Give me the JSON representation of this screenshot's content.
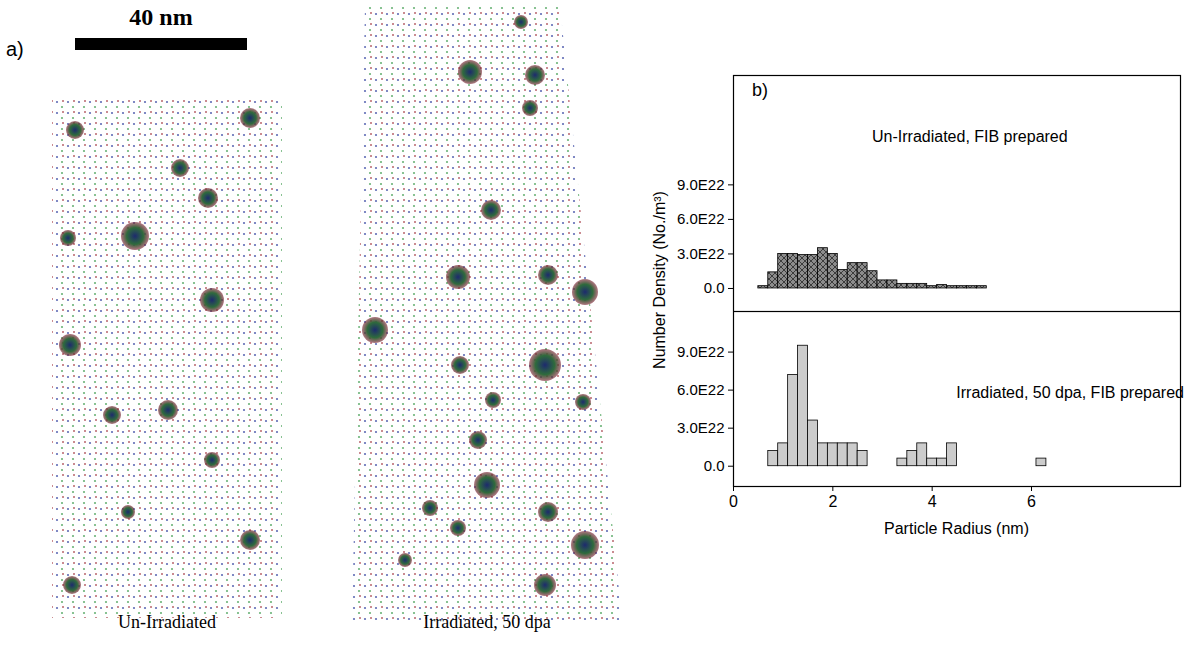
{
  "panel_a": {
    "label": "a)",
    "scale_bar": "40 nm",
    "captions": [
      "Un-Irradiated",
      "Irradiated, 50 dpa"
    ]
  },
  "chart_data": [
    {
      "type": "histogram",
      "panel_label": "b)",
      "title": "Un-Irradiated, FIB prepared",
      "ylabel": "Number Density (No./m³)",
      "bins": [
        0.5,
        0.7,
        0.9,
        1.1,
        1.3,
        1.5,
        1.7,
        1.9,
        2.1,
        2.3,
        2.5,
        2.7,
        2.9,
        3.1,
        3.3,
        3.5,
        3.7,
        3.9,
        4.1,
        4.3,
        4.5,
        4.7,
        4.9,
        5.1
      ],
      "values": [
        2e+21,
        1.4e+22,
        3e+22,
        3e+22,
        2.9e+22,
        2.9e+22,
        3.5e+22,
        3e+22,
        1.6e+22,
        2.2e+22,
        2.2e+22,
        1.5e+22,
        7e+21,
        7e+21,
        4e+21,
        4e+21,
        4e+21,
        2e+21,
        3e+21,
        2e+21,
        2e+21,
        2e+21,
        2e+21
      ],
      "color": "#8c8c8c",
      "xlim": [
        0,
        9
      ],
      "xticks": [
        0,
        2,
        4,
        6
      ],
      "ylim": [
        -2e+22,
        1.85e+23
      ],
      "yticks": [
        {
          "value": 0,
          "label": "0.0"
        },
        {
          "value": 3e+22,
          "label": "3.0E22"
        },
        {
          "value": 6e+22,
          "label": "6.0E22"
        },
        {
          "value": 9e+22,
          "label": "9.0E22"
        }
      ],
      "tick_labels": "y"
    },
    {
      "type": "histogram",
      "title": "Irradiated, 50 dpa, FIB prepared",
      "xlabel": "Particle Radius (nm)",
      "bins": [
        0.7,
        0.9,
        1.1,
        1.3,
        1.5,
        1.7,
        1.9,
        2.1,
        2.3,
        2.5,
        2.7,
        2.9,
        3.1,
        3.3,
        3.5,
        3.7,
        3.9,
        4.1,
        4.3,
        4.5,
        4.7,
        4.9,
        5.1,
        5.3,
        5.5,
        5.7,
        5.9,
        6.1,
        6.3,
        6.5
      ],
      "values": [
        1.2e+22,
        1.8e+22,
        7.2e+22,
        9.5e+22,
        3.6e+22,
        1.8e+22,
        1.8e+22,
        1.8e+22,
        1.8e+22,
        1.2e+22,
        0,
        0,
        0,
        6e+21,
        1.2e+22,
        1.8e+22,
        6e+21,
        6e+21,
        1.8e+22,
        0,
        0,
        0,
        0,
        0,
        0,
        0,
        0,
        6e+21,
        0
      ],
      "color": "#cccccc",
      "xlim": [
        0,
        9
      ],
      "xticks": [
        0,
        2,
        4,
        6
      ],
      "ylim": [
        -1.6e+22,
        1.22e+23
      ],
      "yticks": [
        {
          "value": 0,
          "label": "0.0"
        },
        {
          "value": 3e+22,
          "label": "3.0E22"
        },
        {
          "value": 6e+22,
          "label": "6.0E22"
        },
        {
          "value": 9e+22,
          "label": "9.0E22"
        }
      ]
    }
  ]
}
